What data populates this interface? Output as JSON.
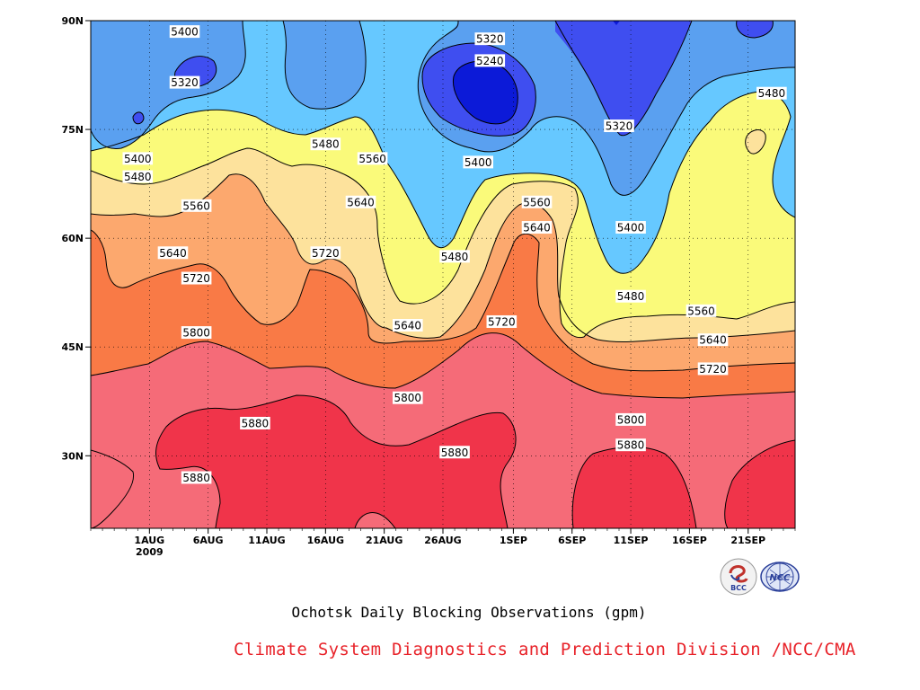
{
  "chart_data": {
    "type": "contour",
    "title": "Ochotsk Daily Blocking Observations (gpm)",
    "x_tick_labels": [
      "1AUG\n2009",
      "6AUG",
      "11AUG",
      "16AUG",
      "21AUG",
      "26AUG",
      "1SEP",
      "6SEP",
      "11SEP",
      "16SEP",
      "21SEP"
    ],
    "x_range": [
      "2009-07-27",
      "2009-09-25"
    ],
    "y_tick_labels": [
      "30N",
      "45N",
      "60N",
      "75N",
      "90N"
    ],
    "y_range": [
      20,
      90
    ],
    "contour_levels": [
      5240,
      5320,
      5400,
      5480,
      5560,
      5640,
      5720,
      5800,
      5880
    ],
    "contour_labels": [
      {
        "value": "5400",
        "date": "2009-08-04",
        "lat": 88.5
      },
      {
        "value": "5320",
        "date": "2009-08-04",
        "lat": 81.5
      },
      {
        "value": "5320",
        "date": "2009-08-30",
        "lat": 87.5
      },
      {
        "value": "5240",
        "date": "2009-08-30",
        "lat": 84.5
      },
      {
        "value": "5400",
        "date": "2009-07-31",
        "lat": 71.0
      },
      {
        "value": "5480",
        "date": "2009-07-31",
        "lat": 68.5
      },
      {
        "value": "5480",
        "date": "2009-08-16",
        "lat": 73.0
      },
      {
        "value": "5560",
        "date": "2009-08-20",
        "lat": 71.0
      },
      {
        "value": "5400",
        "date": "2009-08-29",
        "lat": 70.5
      },
      {
        "value": "5320",
        "date": "2009-09-10",
        "lat": 75.5
      },
      {
        "value": "5480",
        "date": "2009-09-23",
        "lat": 80.0
      },
      {
        "value": "5560",
        "date": "2009-08-05",
        "lat": 64.5
      },
      {
        "value": "5640",
        "date": "2009-08-19",
        "lat": 65.0
      },
      {
        "value": "5560",
        "date": "2009-09-03",
        "lat": 65.0
      },
      {
        "value": "5640",
        "date": "2009-09-03",
        "lat": 61.5
      },
      {
        "value": "5400",
        "date": "2009-09-11",
        "lat": 61.5
      },
      {
        "value": "5640",
        "date": "2009-08-03",
        "lat": 58.0
      },
      {
        "value": "5720",
        "date": "2009-08-16",
        "lat": 58.0
      },
      {
        "value": "5480",
        "date": "2009-08-27",
        "lat": 57.5
      },
      {
        "value": "5480",
        "date": "2009-09-11",
        "lat": 52.0
      },
      {
        "value": "5720",
        "date": "2009-08-05",
        "lat": 54.5
      },
      {
        "value": "5560",
        "date": "2009-09-17",
        "lat": 50.0
      },
      {
        "value": "5640",
        "date": "2009-08-23",
        "lat": 48.0
      },
      {
        "value": "5720",
        "date": "2009-08-31",
        "lat": 48.5
      },
      {
        "value": "5800",
        "date": "2009-08-05",
        "lat": 47.0
      },
      {
        "value": "5640",
        "date": "2009-09-18",
        "lat": 46.0
      },
      {
        "value": "5720",
        "date": "2009-09-18",
        "lat": 42.0
      },
      {
        "value": "5800",
        "date": "2009-08-23",
        "lat": 38.0
      },
      {
        "value": "5800",
        "date": "2009-09-11",
        "lat": 35.0
      },
      {
        "value": "5880",
        "date": "2009-08-10",
        "lat": 34.5
      },
      {
        "value": "5880",
        "date": "2009-08-27",
        "lat": 30.5
      },
      {
        "value": "5880",
        "date": "2009-09-11",
        "lat": 31.5
      },
      {
        "value": "5880",
        "date": "2009-08-05",
        "lat": 27.0
      }
    ],
    "colorbar": false,
    "grid": true
  },
  "caption": {
    "title": "Ochotsk Daily Blocking Observations (gpm)",
    "credit": "Climate System Diagnostics and Prediction Division /NCC/CMA"
  },
  "logos": {
    "bcc": {
      "icon": "bcc-logo-icon",
      "text": "BCC",
      "color": "#c0322c"
    },
    "ncc": {
      "icon": "ncc-logo-icon",
      "text": "NCC",
      "color": "#2a3f9a"
    }
  },
  "colors": {
    "band_5240": "#0c1ad8",
    "band_5320": "#3f4ef0",
    "band_5400": "#5aa0f0",
    "band_5480": "#66c8ff",
    "band_5560": "#fafa7a",
    "band_5640": "#fde29c",
    "band_5720": "#fca86e",
    "band_5800": "#f97a46",
    "band_5880": "#f56b78",
    "band_max": "#f0344a"
  }
}
